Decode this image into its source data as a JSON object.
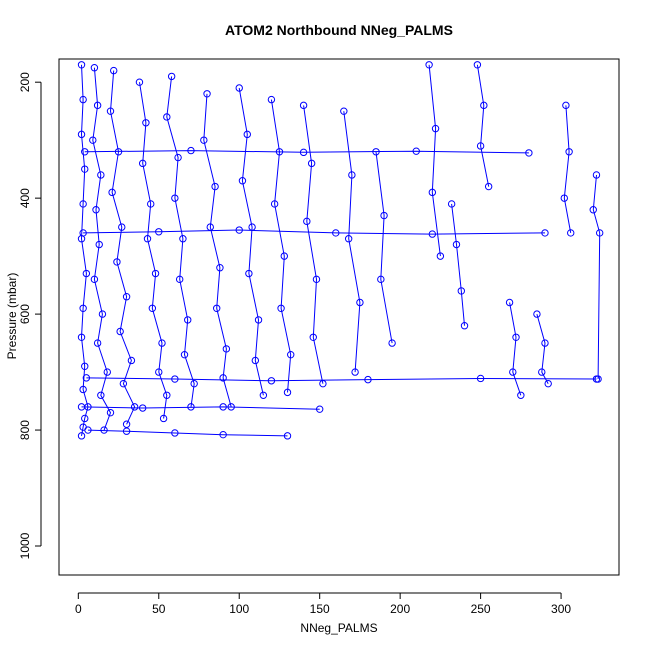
{
  "chart_data": {
    "type": "scatter",
    "title": "ATOM2 Northbound NNeg_PALMS",
    "xlabel": "NNeg_PALMS",
    "ylabel": "Pressure (mbar)",
    "xlim": [
      -12,
      336
    ],
    "ylim": [
      1050,
      160
    ],
    "y_reversed": true,
    "x_ticks": [
      0,
      50,
      100,
      150,
      200,
      250,
      300
    ],
    "y_ticks": [
      200,
      400,
      600,
      800,
      1000
    ],
    "marker": "open-circle",
    "connect_points": true,
    "color": "#0000ff",
    "series": [
      {
        "x": [
          2,
          3,
          2,
          4,
          3,
          2,
          5,
          3,
          2,
          4,
          3,
          6,
          4,
          3,
          2
        ],
        "y": [
          170,
          230,
          290,
          350,
          410,
          470,
          530,
          590,
          640,
          690,
          730,
          760,
          780,
          795,
          810
        ]
      },
      {
        "x": [
          10,
          12,
          9,
          14,
          11,
          13,
          10,
          15,
          12,
          18,
          14,
          20,
          16
        ],
        "y": [
          175,
          240,
          300,
          360,
          420,
          480,
          540,
          600,
          650,
          700,
          740,
          770,
          800
        ]
      },
      {
        "x": [
          22,
          20,
          25,
          21,
          27,
          24,
          30,
          26,
          33,
          28,
          35,
          30
        ],
        "y": [
          180,
          250,
          320,
          390,
          450,
          510,
          570,
          630,
          680,
          720,
          760,
          790
        ]
      },
      {
        "x": [
          38,
          42,
          40,
          45,
          43,
          48,
          46,
          52,
          50,
          55,
          53
        ],
        "y": [
          200,
          270,
          340,
          410,
          470,
          530,
          590,
          650,
          700,
          740,
          780
        ]
      },
      {
        "x": [
          58,
          55,
          62,
          60,
          65,
          63,
          68,
          66,
          72,
          70
        ],
        "y": [
          190,
          260,
          330,
          400,
          470,
          540,
          610,
          670,
          720,
          760
        ]
      },
      {
        "x": [
          80,
          78,
          85,
          82,
          88,
          86,
          92,
          90,
          95
        ],
        "y": [
          220,
          300,
          380,
          450,
          520,
          590,
          660,
          710,
          760
        ]
      },
      {
        "x": [
          100,
          105,
          102,
          108,
          106,
          112,
          110,
          115
        ],
        "y": [
          210,
          290,
          370,
          450,
          530,
          610,
          680,
          740
        ]
      },
      {
        "x": [
          120,
          125,
          122,
          128,
          126,
          132,
          130
        ],
        "y": [
          230,
          320,
          410,
          500,
          590,
          670,
          735
        ]
      },
      {
        "x": [
          140,
          145,
          142,
          148,
          146,
          152
        ],
        "y": [
          240,
          340,
          440,
          540,
          640,
          720
        ]
      },
      {
        "x": [
          165,
          170,
          168,
          175,
          172
        ],
        "y": [
          250,
          360,
          470,
          580,
          700
        ]
      },
      {
        "x": [
          185,
          190,
          188,
          195
        ],
        "y": [
          320,
          430,
          540,
          650
        ]
      },
      {
        "x": [
          218,
          222,
          220,
          225
        ],
        "y": [
          170,
          280,
          390,
          500
        ]
      },
      {
        "x": [
          232,
          235,
          238,
          240
        ],
        "y": [
          410,
          480,
          560,
          620
        ]
      },
      {
        "x": [
          248,
          252,
          250,
          255
        ],
        "y": [
          170,
          240,
          310,
          380
        ]
      },
      {
        "x": [
          268,
          272,
          270,
          275
        ],
        "y": [
          580,
          640,
          700,
          740
        ]
      },
      {
        "x": [
          285,
          290,
          288,
          292
        ],
        "y": [
          600,
          650,
          700,
          720
        ]
      },
      {
        "x": [
          303,
          305,
          302,
          306
        ],
        "y": [
          240,
          320,
          400,
          460
        ]
      },
      {
        "x": [
          322,
          320,
          324,
          323
        ],
        "y": [
          360,
          420,
          460,
          712
        ]
      },
      {
        "x": [
          5,
          60,
          120,
          180,
          250,
          322
        ],
        "y": [
          710,
          712,
          715,
          713,
          711,
          712
        ]
      },
      {
        "x": [
          3,
          50,
          100,
          160,
          220,
          290
        ],
        "y": [
          460,
          458,
          455,
          460,
          462,
          460
        ]
      },
      {
        "x": [
          4,
          70,
          140,
          210,
          280
        ],
        "y": [
          320,
          318,
          321,
          319,
          322
        ]
      },
      {
        "x": [
          2,
          40,
          90,
          150
        ],
        "y": [
          760,
          762,
          760,
          764
        ]
      },
      {
        "x": [
          6,
          30,
          60,
          90,
          130
        ],
        "y": [
          800,
          802,
          805,
          808,
          810
        ]
      }
    ]
  }
}
